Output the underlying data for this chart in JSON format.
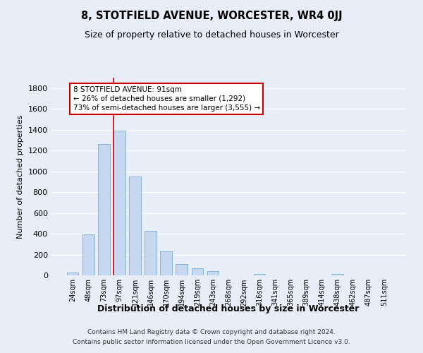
{
  "title": "8, STOTFIELD AVENUE, WORCESTER, WR4 0JJ",
  "subtitle": "Size of property relative to detached houses in Worcester",
  "xlabel": "Distribution of detached houses by size in Worcester",
  "ylabel": "Number of detached properties",
  "bar_labels": [
    "24sqm",
    "48sqm",
    "73sqm",
    "97sqm",
    "121sqm",
    "146sqm",
    "170sqm",
    "194sqm",
    "219sqm",
    "243sqm",
    "268sqm",
    "292sqm",
    "316sqm",
    "341sqm",
    "365sqm",
    "389sqm",
    "414sqm",
    "438sqm",
    "462sqm",
    "487sqm",
    "511sqm"
  ],
  "bar_values": [
    25,
    395,
    1265,
    1390,
    950,
    425,
    230,
    110,
    65,
    40,
    0,
    0,
    15,
    0,
    0,
    0,
    0,
    15,
    0,
    0,
    0
  ],
  "bar_color": "#c5d8f0",
  "bar_edge_color": "#7aadd4",
  "vline_color": "#cc0000",
  "vline_index": 3,
  "annotation_line1": "8 STOTFIELD AVENUE: 91sqm",
  "annotation_line2": "← 26% of detached houses are smaller (1,292)",
  "annotation_line3": "73% of semi-detached houses are larger (3,555) →",
  "annotation_box_color": "white",
  "annotation_box_edge_color": "#cc0000",
  "ylim": [
    0,
    1900
  ],
  "yticks": [
    0,
    200,
    400,
    600,
    800,
    1000,
    1200,
    1400,
    1600,
    1800
  ],
  "footer_line1": "Contains HM Land Registry data © Crown copyright and database right 2024.",
  "footer_line2": "Contains public sector information licensed under the Open Government Licence v3.0.",
  "bg_color": "#e8eef8",
  "grid_color": "white",
  "title_fontsize": 10.5,
  "subtitle_fontsize": 9
}
